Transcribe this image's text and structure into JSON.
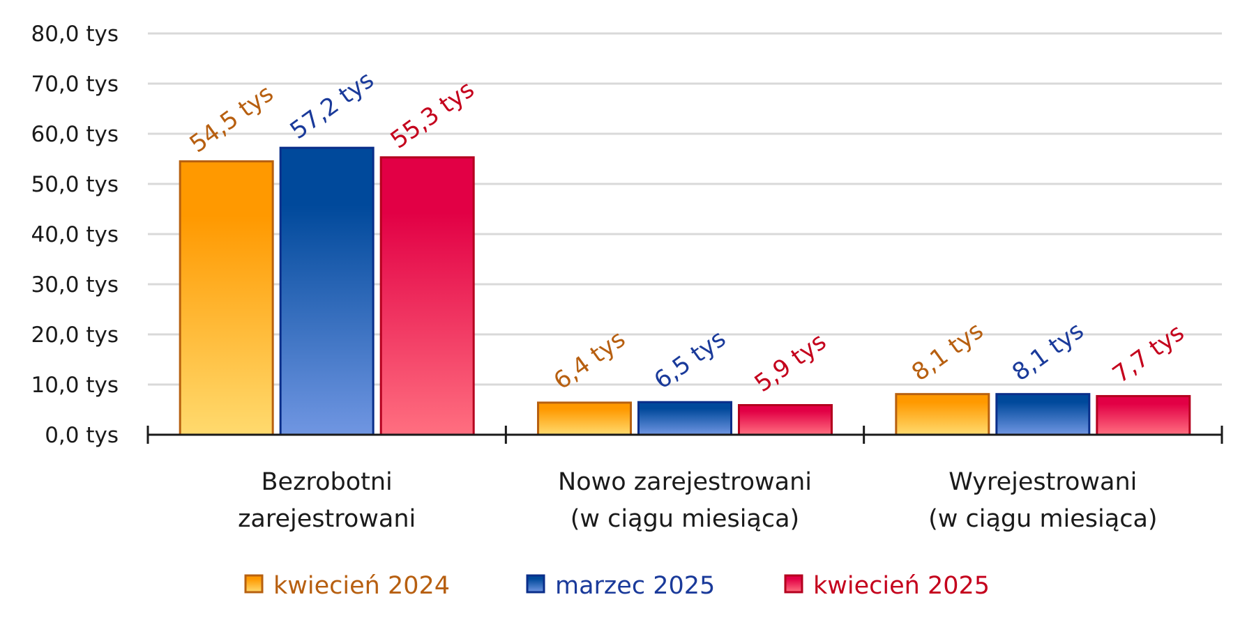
{
  "chart_data": {
    "type": "bar",
    "categories": [
      [
        "Bezrobotni",
        "zarejestrowani"
      ],
      [
        "Nowo zarejestrowani",
        "(w ciągu miesiąca)"
      ],
      [
        "Wyrejestrowani",
        "(w ciągu miesiąca)"
      ]
    ],
    "series": [
      {
        "name": "kwiecień 2024",
        "values": [
          54.5,
          6.4,
          8.1
        ],
        "labels": [
          "54,5 tys",
          "6,4 tys",
          "8,1 tys"
        ],
        "color_top": "#ff9900",
        "color_bottom": "#ffda6e",
        "stroke": "#b7600f",
        "label_color": "#b75f10"
      },
      {
        "name": "marzec 2025",
        "values": [
          57.2,
          6.5,
          8.1
        ],
        "labels": [
          "57,2 tys",
          "6,5 tys",
          "8,1 tys"
        ],
        "color_top": "#00499b",
        "color_bottom": "#7096e2",
        "stroke": "#0a2e8a",
        "label_color": "#1a3a9a"
      },
      {
        "name": "kwiecień 2025",
        "values": [
          55.3,
          5.9,
          7.7
        ],
        "labels": [
          "55,3 tys",
          "5,9 tys",
          "7,7 tys"
        ],
        "color_top": "#e20045",
        "color_bottom": "#ff6f80",
        "stroke": "#b4001e",
        "label_color": "#c4001c"
      }
    ],
    "ylim": [
      0,
      80
    ],
    "yticks": [
      {
        "value": 0,
        "label": "0,0 tys"
      },
      {
        "value": 10,
        "label": "10,0 tys"
      },
      {
        "value": 20,
        "label": "20,0 tys"
      },
      {
        "value": 30,
        "label": "30,0 tys"
      },
      {
        "value": 40,
        "label": "40,0 tys"
      },
      {
        "value": 50,
        "label": "50,0 tys"
      },
      {
        "value": 60,
        "label": "60,0 tys"
      },
      {
        "value": 70,
        "label": "70,0 tys"
      },
      {
        "value": 80,
        "label": "80,0 tys"
      }
    ],
    "grid": true,
    "legend_position": "bottom"
  }
}
